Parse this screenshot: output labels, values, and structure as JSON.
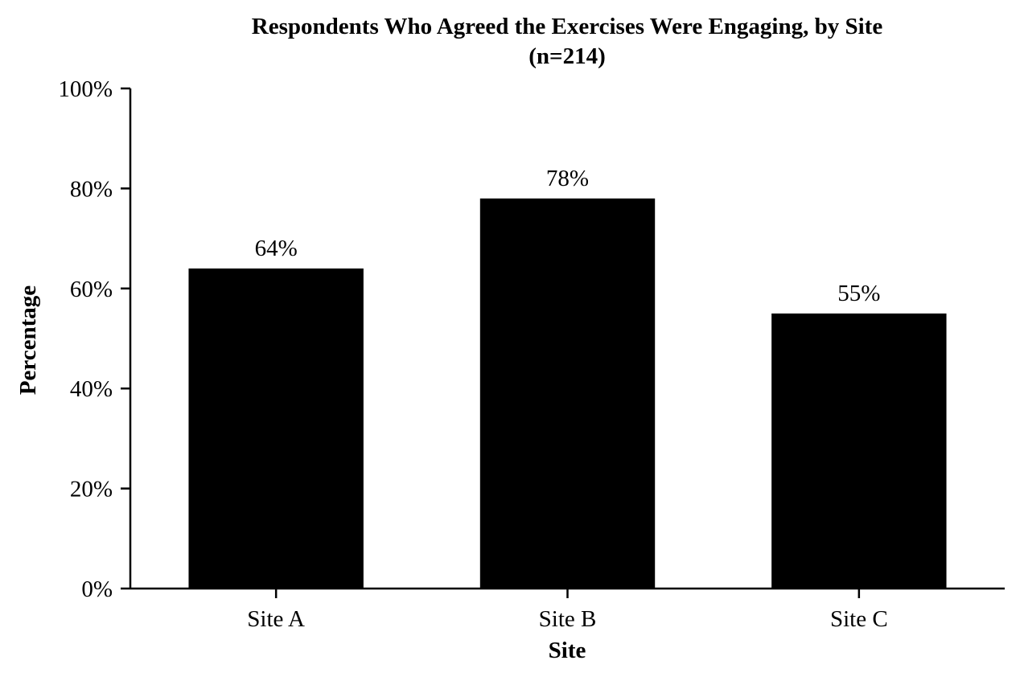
{
  "chart_data": {
    "type": "bar",
    "title": "Respondents Who Agreed the Exercises Were Engaging, by Site",
    "subtitle": "(n=214)",
    "xlabel": "Site",
    "ylabel": "Percentage",
    "categories": [
      "Site A",
      "Site B",
      "Site C"
    ],
    "values": [
      64,
      78,
      55
    ],
    "data_labels": [
      "64%",
      "78%",
      "55%"
    ],
    "ylim": [
      0,
      100
    ],
    "yticks": [
      0,
      20,
      40,
      60,
      80,
      100
    ],
    "ytick_labels": [
      "0%",
      "20%",
      "40%",
      "60%",
      "80%",
      "100%"
    ],
    "grid": false,
    "legend": "none",
    "bar_color": "#000000"
  }
}
